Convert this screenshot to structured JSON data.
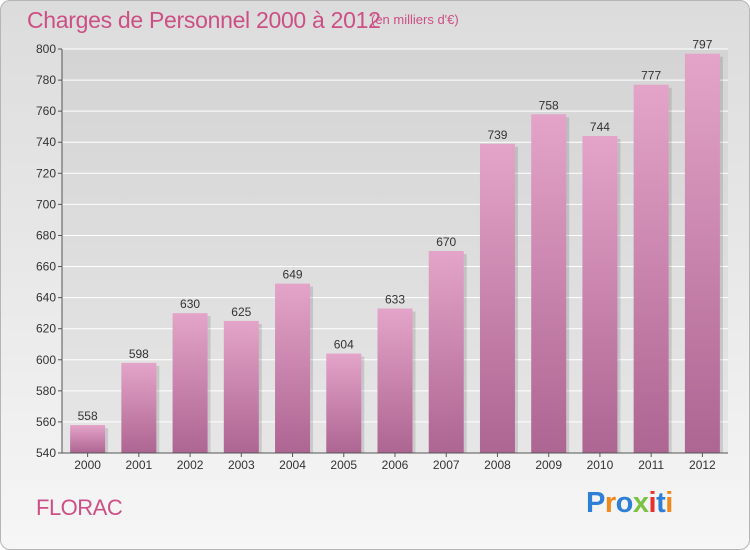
{
  "header": {
    "title": "Charges de Personnel 2000 à 2012",
    "subtitle": "(en milliers d'€)"
  },
  "footer": {
    "commune": "FLORAC",
    "logo_text": "Proxiti",
    "logo_colors": [
      "#2e7fd6",
      "#f08a1c",
      "#2e7fd6",
      "#7cc242",
      "#e8302a",
      "#2e7fd6",
      "#f08a1c"
    ]
  },
  "colors": {
    "accent": "#cc4f86",
    "bar_top": "#e4a4c9",
    "bar_bottom": "#ad6591",
    "grid": "#ffffff"
  },
  "chart_data": {
    "type": "bar",
    "categories": [
      "2000",
      "2001",
      "2002",
      "2003",
      "2004",
      "2005",
      "2006",
      "2007",
      "2008",
      "2009",
      "2010",
      "2011",
      "2012"
    ],
    "values": [
      558,
      598,
      630,
      625,
      649,
      604,
      633,
      670,
      739,
      758,
      744,
      777,
      797
    ],
    "title": "Charges de Personnel 2000 à 2012",
    "xlabel": "",
    "ylabel": "",
    "ylim": [
      540,
      800
    ],
    "yticks": [
      540,
      560,
      580,
      600,
      620,
      640,
      660,
      680,
      700,
      720,
      740,
      760,
      780,
      800
    ],
    "grid": true,
    "data_labels": true
  }
}
